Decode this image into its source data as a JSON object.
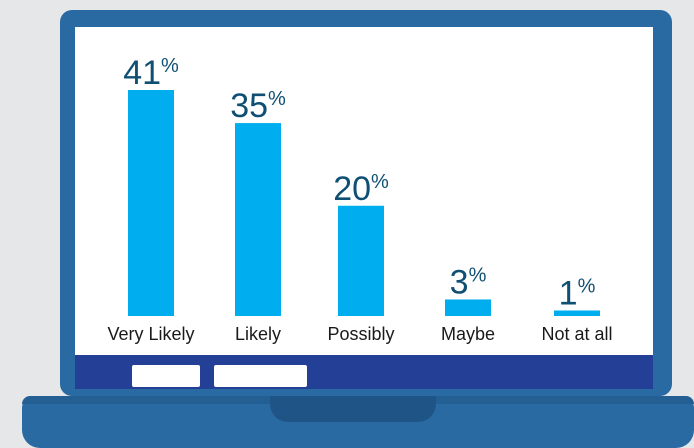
{
  "colors": {
    "bar": "#00aeef",
    "value_text": "#0f4f73",
    "laptop_frame": "#2a6aa2",
    "taskbar": "#233f96",
    "background": "#e6e7e8"
  },
  "chart_data": {
    "type": "bar",
    "categories": [
      "Very Likely",
      "Likely",
      "Possibly",
      "Maybe",
      "Not at all"
    ],
    "values": [
      41,
      35,
      20,
      3,
      1
    ],
    "value_labels": [
      "41",
      "35",
      "20",
      "3",
      "1"
    ],
    "value_suffix": "%",
    "ylim": [
      0,
      41
    ],
    "grid": false,
    "legend": "none"
  },
  "taskbar": {
    "buttons": [
      "button",
      "button"
    ]
  }
}
